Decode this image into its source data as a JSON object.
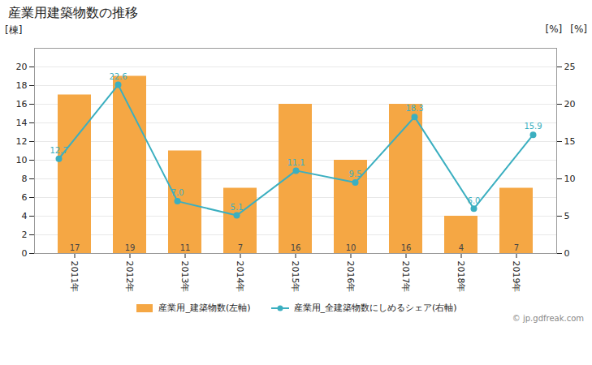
{
  "chart_data": {
    "type": "bar",
    "title": "産業用建築物数の推移",
    "categories": [
      "2011年",
      "2012年",
      "2013年",
      "2014年",
      "2015年",
      "2016年",
      "2017年",
      "2018年",
      "2019年"
    ],
    "series": [
      {
        "name": "産業用_建築物数(左軸)",
        "type": "bar",
        "color": "#F5A744",
        "values": [
          17,
          19,
          11,
          7,
          16,
          10,
          16,
          4,
          7
        ]
      },
      {
        "name": "産業用_全建築物数にしめるシェア(右軸)",
        "type": "line",
        "color": "#3BAFC0",
        "marker": "circle",
        "axis": "y2",
        "values": [
          12.7,
          22.6,
          7.0,
          5.1,
          11.1,
          9.5,
          18.3,
          6.0,
          15.9
        ],
        "value_labels": [
          "12.7",
          "22.6",
          "7.0",
          "5.1",
          "11.1",
          "9.5",
          "18.3",
          "6.0",
          "15.9"
        ]
      }
    ],
    "ylabel": "[棟]",
    "y2label": "[%]",
    "ylim": [
      0,
      22
    ],
    "yticks": [
      0,
      2,
      4,
      6,
      8,
      10,
      12,
      14,
      16,
      18,
      20
    ],
    "y2lim": [
      0,
      27.5
    ],
    "y2ticks": [
      0,
      5,
      10,
      15,
      20,
      25
    ],
    "grid": true,
    "legend": "bottom",
    "data_labels": true,
    "annotations": [
      "[%]",
      "© jp.gdfreak.com"
    ]
  }
}
